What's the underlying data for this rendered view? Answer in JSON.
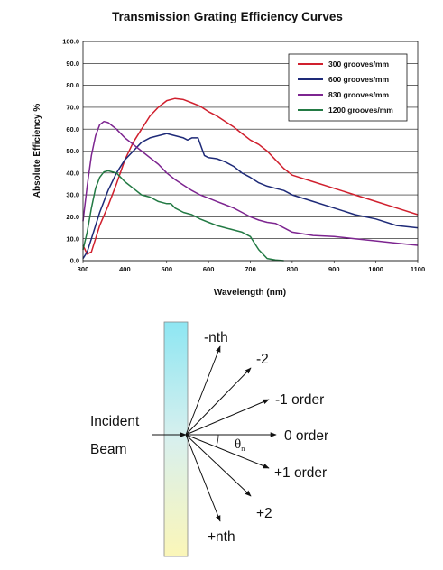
{
  "chart_data": {
    "type": "line",
    "title": "Transmission Grating Efficiency Curves",
    "xlabel": "Wavelength (nm)",
    "ylabel": "Absolute Efficiency %",
    "xlim": [
      300,
      1100
    ],
    "ylim": [
      0,
      100
    ],
    "x_ticks": [
      "300",
      "400",
      "500",
      "600",
      "700",
      "800",
      "900",
      "1000",
      "1100"
    ],
    "y_ticks": [
      "0.0",
      "10.0",
      "20.0",
      "30.0",
      "40.0",
      "50.0",
      "60.0",
      "70.0",
      "80.0",
      "90.0",
      "100.0"
    ],
    "grid": "horizontal",
    "legend_position": "top-right",
    "series": [
      {
        "name": "300 grooves/mm",
        "color": "#d0202e",
        "points": [
          [
            300,
            7
          ],
          [
            310,
            3
          ],
          [
            320,
            4
          ],
          [
            330,
            10
          ],
          [
            340,
            16
          ],
          [
            360,
            25
          ],
          [
            380,
            35
          ],
          [
            400,
            46
          ],
          [
            420,
            54
          ],
          [
            440,
            60
          ],
          [
            460,
            66
          ],
          [
            480,
            70
          ],
          [
            500,
            73
          ],
          [
            520,
            74
          ],
          [
            540,
            73.5
          ],
          [
            560,
            72
          ],
          [
            580,
            70.5
          ],
          [
            600,
            68
          ],
          [
            620,
            66
          ],
          [
            640,
            63.5
          ],
          [
            660,
            61
          ],
          [
            680,
            58
          ],
          [
            700,
            55
          ],
          [
            720,
            53
          ],
          [
            740,
            50
          ],
          [
            760,
            46
          ],
          [
            780,
            42
          ],
          [
            800,
            39
          ],
          [
            850,
            36
          ],
          [
            900,
            33
          ],
          [
            950,
            30
          ],
          [
            1000,
            27
          ],
          [
            1050,
            24
          ],
          [
            1100,
            21
          ]
        ]
      },
      {
        "name": "600 grooves/mm",
        "color": "#1e2a78",
        "points": [
          [
            300,
            1
          ],
          [
            310,
            4
          ],
          [
            320,
            10
          ],
          [
            330,
            16
          ],
          [
            340,
            22
          ],
          [
            360,
            32
          ],
          [
            380,
            40
          ],
          [
            400,
            46
          ],
          [
            420,
            50
          ],
          [
            440,
            54
          ],
          [
            460,
            56
          ],
          [
            480,
            57
          ],
          [
            500,
            58
          ],
          [
            520,
            57
          ],
          [
            540,
            56
          ],
          [
            550,
            55
          ],
          [
            560,
            56
          ],
          [
            575,
            56
          ],
          [
            590,
            48
          ],
          [
            600,
            47
          ],
          [
            620,
            46.5
          ],
          [
            640,
            45
          ],
          [
            660,
            43
          ],
          [
            680,
            40
          ],
          [
            700,
            38
          ],
          [
            720,
            35.5
          ],
          [
            740,
            34
          ],
          [
            760,
            33
          ],
          [
            780,
            32
          ],
          [
            800,
            30
          ],
          [
            850,
            27
          ],
          [
            900,
            24
          ],
          [
            950,
            21
          ],
          [
            1000,
            19
          ],
          [
            1050,
            16
          ],
          [
            1100,
            15
          ]
        ]
      },
      {
        "name": "830 grooves/mm",
        "color": "#7d2590",
        "points": [
          [
            300,
            18
          ],
          [
            310,
            34
          ],
          [
            320,
            48
          ],
          [
            330,
            57
          ],
          [
            340,
            62
          ],
          [
            350,
            63.5
          ],
          [
            360,
            63
          ],
          [
            380,
            60
          ],
          [
            400,
            56
          ],
          [
            420,
            53
          ],
          [
            440,
            50
          ],
          [
            460,
            47
          ],
          [
            480,
            44
          ],
          [
            500,
            40
          ],
          [
            520,
            37
          ],
          [
            540,
            34.5
          ],
          [
            560,
            32
          ],
          [
            580,
            30
          ],
          [
            600,
            28.5
          ],
          [
            620,
            27
          ],
          [
            640,
            25.5
          ],
          [
            660,
            24
          ],
          [
            680,
            22
          ],
          [
            700,
            20
          ],
          [
            720,
            18.5
          ],
          [
            740,
            17.5
          ],
          [
            760,
            17
          ],
          [
            780,
            15
          ],
          [
            800,
            13
          ],
          [
            850,
            11.5
          ],
          [
            900,
            11
          ],
          [
            950,
            10
          ],
          [
            1000,
            9
          ],
          [
            1050,
            8
          ],
          [
            1100,
            7
          ]
        ]
      },
      {
        "name": "1200 grooves/mm",
        "color": "#237a44",
        "points": [
          [
            300,
            5
          ],
          [
            310,
            13
          ],
          [
            320,
            24
          ],
          [
            330,
            33
          ],
          [
            340,
            38
          ],
          [
            350,
            40.5
          ],
          [
            360,
            41
          ],
          [
            380,
            40
          ],
          [
            400,
            36
          ],
          [
            420,
            33
          ],
          [
            440,
            30
          ],
          [
            460,
            29
          ],
          [
            480,
            27
          ],
          [
            500,
            26
          ],
          [
            510,
            26
          ],
          [
            520,
            24
          ],
          [
            540,
            22
          ],
          [
            560,
            21
          ],
          [
            580,
            19
          ],
          [
            600,
            17.5
          ],
          [
            620,
            16
          ],
          [
            640,
            15
          ],
          [
            660,
            14
          ],
          [
            680,
            13
          ],
          [
            700,
            11
          ],
          [
            710,
            8
          ],
          [
            720,
            5
          ],
          [
            730,
            3
          ],
          [
            740,
            1
          ],
          [
            760,
            0.3
          ],
          [
            780,
            0
          ]
        ]
      }
    ]
  },
  "diagram": {
    "incident_line1": "Incident",
    "incident_line2": "Beam",
    "angle_symbol": "θ",
    "angle_subscript": "n",
    "orders": [
      {
        "label": "-nth"
      },
      {
        "label": "-2"
      },
      {
        "label": "-1 order"
      },
      {
        "label": "0 order"
      },
      {
        "label": "+1 order"
      },
      {
        "label": "+2"
      },
      {
        "label": "+nth"
      }
    ]
  }
}
